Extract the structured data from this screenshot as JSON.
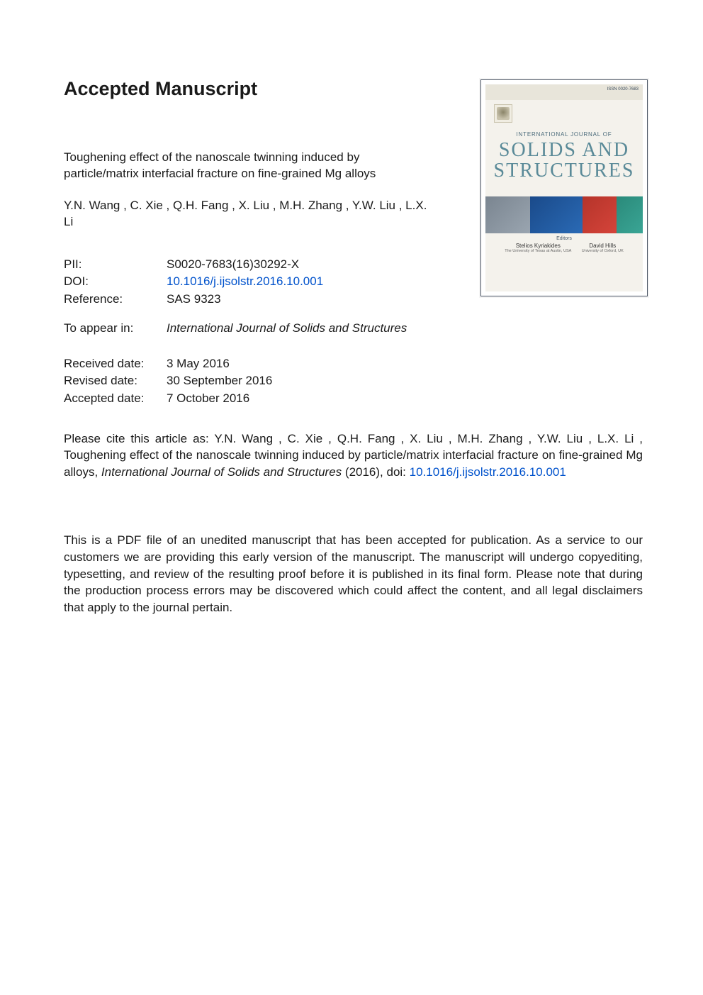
{
  "heading": "Accepted Manuscript",
  "article": {
    "title": "Toughening effect of the nanoscale twinning induced by particle/matrix interfacial fracture on fine-grained Mg alloys",
    "authors": "Y.N. Wang ,  C. Xie ,  Q.H. Fang ,  X. Liu ,  M.H. Zhang ,  Y.W. Liu , L.X. Li"
  },
  "meta": {
    "pii_label": "PII:",
    "pii": "S0020-7683(16)30292-X",
    "doi_label": "DOI:",
    "doi": "10.1016/j.ijsolstr.2016.10.001",
    "ref_label": "Reference:",
    "ref": "SAS 9323"
  },
  "appear": {
    "label": "To appear in:",
    "journal": "International Journal of Solids and Structures"
  },
  "dates": {
    "received_label": "Received date:",
    "received": "3 May 2016",
    "revised_label": "Revised date:",
    "revised": "30 September 2016",
    "accepted_label": "Accepted date:",
    "accepted": "7 October 2016"
  },
  "cite": {
    "prefix": "Please cite this article as:  Y.N. Wang ,  C. Xie ,  Q.H. Fang ,  X. Liu ,  M.H. Zhang ,  Y.W. Liu , L.X. Li ,  Toughening effect of the nanoscale twinning induced by particle/matrix interfacial fracture on fine-grained Mg alloys, ",
    "journal": "International Journal of Solids and Structures",
    "year_doi": " (2016), doi: ",
    "doi_link": "10.1016/j.ijsolstr.2016.10.001"
  },
  "disclaimer": "This is a PDF file of an unedited manuscript that has been accepted for publication. As a service to our customers we are providing this early version of the manuscript. The manuscript will undergo copyediting, typesetting, and review of the resulting proof before it is published in its final form. Please note that during the production process errors may be discovered which could affect the content, and all legal disclaimers that apply to the journal pertain.",
  "cover": {
    "issn": "ISSN 0020-7683",
    "intl": "INTERNATIONAL JOURNAL OF",
    "title_line1": "SOLIDS AND",
    "title_line2": "STRUCTURES",
    "editors_label": "Editors",
    "editor1": "Stelios Kyriakides",
    "editor1_aff": "The University of Texas at Austin, USA",
    "editor2": "David Hills",
    "editor2_aff": "University of Oxford, UK",
    "band_colors": [
      "#8a95a0",
      "#1a5aa5",
      "#c5392e",
      "#2f9a88"
    ],
    "background": "#f4f2ec",
    "title_color": "#5a8a98"
  },
  "colors": {
    "text": "#1a1a1a",
    "link": "#0052cc",
    "page_bg": "#ffffff"
  }
}
